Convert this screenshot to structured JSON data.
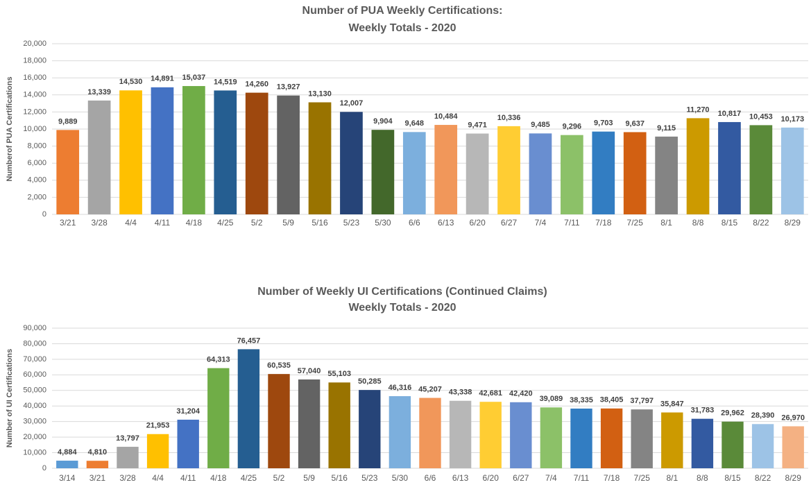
{
  "chart_data": [
    {
      "type": "bar",
      "title": [
        "Number of PUA Weekly Certifications:",
        "Weekly Totals - 2020"
      ],
      "y_label": "Numberof PUA Certifications",
      "categories": [
        "3/21",
        "3/28",
        "4/4",
        "4/11",
        "4/18",
        "4/25",
        "5/2",
        "5/9",
        "5/16",
        "5/23",
        "5/30",
        "6/6",
        "6/13",
        "6/20",
        "6/27",
        "7/4",
        "7/11",
        "7/18",
        "7/25",
        "8/1",
        "8/8",
        "8/15",
        "8/22",
        "8/29"
      ],
      "values": [
        9889,
        13339,
        14530,
        14891,
        15037,
        14519,
        14260,
        13927,
        13130,
        12007,
        9904,
        9648,
        10484,
        9471,
        10336,
        9485,
        9296,
        9703,
        9637,
        9115,
        11270,
        10817,
        10453,
        10173
      ],
      "value_labels": [
        "9,889",
        "13,339",
        "14,530",
        "14,891",
        "15,037",
        "14,519",
        "14,260",
        "13,927",
        "13,130",
        "12,007",
        "9,904",
        "9,648",
        "10,484",
        "9,471",
        "10,336",
        "9,485",
        "9,296",
        "9,703",
        "9,637",
        "9,115",
        "11,270",
        "10,817",
        "10,453",
        "10,173"
      ],
      "colors": [
        "#ED7D31",
        "#A5A5A5",
        "#FFC000",
        "#4472C4",
        "#70AD47",
        "#255E91",
        "#9E480E",
        "#636363",
        "#997300",
        "#264478",
        "#43682B",
        "#7CAFDD",
        "#F1975A",
        "#B7B7B7",
        "#FFCD33",
        "#698ED0",
        "#8CC168",
        "#327DC2",
        "#D26012",
        "#848484",
        "#CC9A00",
        "#335AA1",
        "#5A8A39",
        "#9DC3E6"
      ],
      "ylim": [
        0,
        20000
      ],
      "yticks": [
        0,
        {
          "value": 2000,
          "label": "2,000"
        },
        {
          "value": 4000,
          "label": "4,000"
        },
        {
          "value": 6000,
          "label": "6,000"
        },
        {
          "value": 8000,
          "label": "8,000"
        },
        {
          "value": 10000,
          "label": "10,000"
        },
        {
          "value": 12000,
          "label": "12,000"
        },
        {
          "value": 14000,
          "label": "14,000"
        },
        {
          "value": 16000,
          "label": "16,000"
        },
        {
          "value": 18000,
          "label": "18,000"
        },
        {
          "value": 20000,
          "label": "20,000"
        }
      ],
      "grid": true
    },
    {
      "type": "bar",
      "title": [
        "Number of Weekly UI Certifications (Continued Claims)",
        "Weekly Totals - 2020"
      ],
      "y_label": "Number of UI Certifications",
      "categories": [
        "3/14",
        "3/21",
        "3/28",
        "4/4",
        "4/11",
        "4/18",
        "4/25",
        "5/2",
        "5/9",
        "5/16",
        "5/23",
        "5/30",
        "6/6",
        "6/13",
        "6/20",
        "6/27",
        "7/4",
        "7/11",
        "7/18",
        "7/25",
        "8/1",
        "8/8",
        "8/15",
        "8/22",
        "8/29"
      ],
      "values": [
        4884,
        4810,
        13797,
        21953,
        31204,
        64313,
        76457,
        60535,
        57040,
        55103,
        50285,
        46316,
        45207,
        43338,
        42681,
        42420,
        39089,
        38335,
        38405,
        37797,
        35847,
        31783,
        29962,
        28390,
        26970
      ],
      "value_labels": [
        "4,884",
        "4,810",
        "13,797",
        "21,953",
        "31,204",
        "64,313",
        "76,457",
        "60,535",
        "57,040",
        "55,103",
        "50,285",
        "46,316",
        "45,207",
        "43,338",
        "42,681",
        "42,420",
        "39,089",
        "38,335",
        "38,405",
        "37,797",
        "35,847",
        "31,783",
        "29,962",
        "28,390",
        "26,970"
      ],
      "colors": [
        "#5B9BD5",
        "#ED7D31",
        "#A5A5A5",
        "#FFC000",
        "#4472C4",
        "#70AD47",
        "#255E91",
        "#9E480E",
        "#636363",
        "#997300",
        "#264478",
        "#7CAFDD",
        "#F1975A",
        "#B7B7B7",
        "#FFCD33",
        "#698ED0",
        "#8CC168",
        "#327DC2",
        "#D26012",
        "#848484",
        "#CC9A00",
        "#335AA1",
        "#5A8A39",
        "#9DC3E6",
        "#F4B183"
      ],
      "ylim": [
        0,
        90000
      ],
      "yticks": [
        0,
        {
          "value": 10000,
          "label": "10,000"
        },
        {
          "value": 20000,
          "label": "20,000"
        },
        {
          "value": 30000,
          "label": "30,000"
        },
        {
          "value": 40000,
          "label": "40,000"
        },
        {
          "value": 50000,
          "label": "50,000"
        },
        {
          "value": 60000,
          "label": "60,000"
        },
        {
          "value": 70000,
          "label": "70,000"
        },
        {
          "value": 80000,
          "label": "80,000"
        },
        {
          "value": 90000,
          "label": "90,000"
        }
      ],
      "grid": true
    }
  ]
}
